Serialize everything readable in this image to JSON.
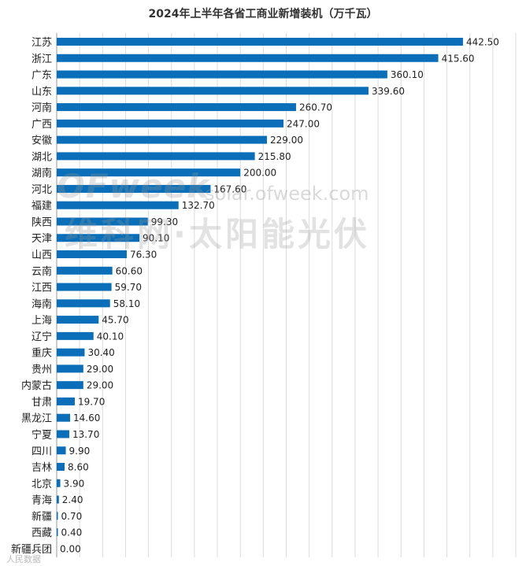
{
  "chart_data": {
    "type": "bar",
    "orientation": "horizontal",
    "title": "2024年上半年各省工商业新增装机（万千瓦）",
    "categories": [
      "江苏",
      "浙江",
      "广东",
      "山东",
      "河南",
      "广西",
      "安徽",
      "湖北",
      "湖南",
      "河北",
      "福建",
      "陕西",
      "天津",
      "山西",
      "云南",
      "江西",
      "海南",
      "上海",
      "辽宁",
      "重庆",
      "贵州",
      "内蒙古",
      "甘肃",
      "黑龙江",
      "宁夏",
      "四川",
      "吉林",
      "北京",
      "青海",
      "新疆",
      "西藏",
      "新疆兵团"
    ],
    "values": [
      442.5,
      415.6,
      360.1,
      339.6,
      260.7,
      247.0,
      229.0,
      215.8,
      200.0,
      167.6,
      132.7,
      99.3,
      90.1,
      76.3,
      60.6,
      59.7,
      58.1,
      45.7,
      40.1,
      30.4,
      29.0,
      29.0,
      19.7,
      14.6,
      13.7,
      9.9,
      8.6,
      3.9,
      2.4,
      0.7,
      0.4,
      0.0
    ],
    "value_labels": [
      "442.50",
      "415.60",
      "360.10",
      "339.60",
      "260.70",
      "247.00",
      "229.00",
      "215.80",
      "200.00",
      "167.60",
      "132.70",
      "99.30",
      "90.10",
      "76.30",
      "60.60",
      "59.70",
      "58.10",
      "45.70",
      "40.10",
      "30.40",
      "29.00",
      "29.00",
      "19.70",
      "14.60",
      "13.70",
      "9.90",
      "8.60",
      "3.90",
      "2.40",
      "0.70",
      "0.40",
      "0.00"
    ],
    "xlim": [
      0,
      500
    ],
    "grid_step": 25,
    "bar_color": "#0a6fb8",
    "legend": "none"
  },
  "watermark": {
    "brand": "OFweek",
    "url": "solar.ofweek.com",
    "text": "维科网·太阳能光伏"
  },
  "source_mark": "人民数据"
}
